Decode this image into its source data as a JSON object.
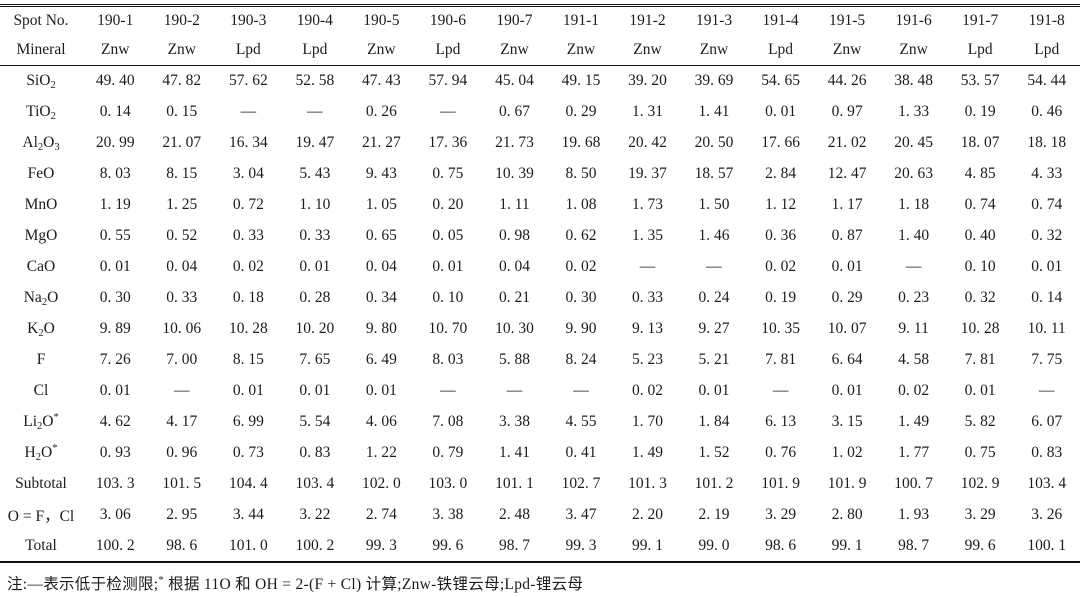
{
  "table": {
    "header": {
      "spot_label": "Spot No.",
      "mineral_label": "Mineral",
      "spots": [
        "190-1",
        "190-2",
        "190-3",
        "190-4",
        "190-5",
        "190-6",
        "190-7",
        "191-1",
        "191-2",
        "191-3",
        "191-4",
        "191-5",
        "191-6",
        "191-7",
        "191-8"
      ],
      "minerals": [
        "Znw",
        "Znw",
        "Lpd",
        "Lpd",
        "Znw",
        "Lpd",
        "Znw",
        "Znw",
        "Znw",
        "Znw",
        "Lpd",
        "Znw",
        "Znw",
        "Lpd",
        "Lpd"
      ]
    },
    "rows": [
      {
        "label": "SiO_2",
        "values": [
          "49. 40",
          "47. 82",
          "57. 62",
          "52. 58",
          "47. 43",
          "57. 94",
          "45. 04",
          "49. 15",
          "39. 20",
          "39. 69",
          "54. 65",
          "44. 26",
          "38. 48",
          "53. 57",
          "54. 44"
        ]
      },
      {
        "label": "TiO_2",
        "values": [
          "0. 14",
          "0. 15",
          "—",
          "—",
          "0. 26",
          "—",
          "0. 67",
          "0. 29",
          "1. 31",
          "1. 41",
          "0. 01",
          "0. 97",
          "1. 33",
          "0. 19",
          "0. 46"
        ]
      },
      {
        "label": "Al_2O_3",
        "values": [
          "20. 99",
          "21. 07",
          "16. 34",
          "19. 47",
          "21. 27",
          "17. 36",
          "21. 73",
          "19. 68",
          "20. 42",
          "20. 50",
          "17. 66",
          "21. 02",
          "20. 45",
          "18. 07",
          "18. 18"
        ]
      },
      {
        "label": "FeO",
        "values": [
          "8. 03",
          "8. 15",
          "3. 04",
          "5. 43",
          "9. 43",
          "0. 75",
          "10. 39",
          "8. 50",
          "19. 37",
          "18. 57",
          "2. 84",
          "12. 47",
          "20. 63",
          "4. 85",
          "4. 33"
        ]
      },
      {
        "label": "MnO",
        "values": [
          "1. 19",
          "1. 25",
          "0. 72",
          "1. 10",
          "1. 05",
          "0. 20",
          "1. 11",
          "1. 08",
          "1. 73",
          "1. 50",
          "1. 12",
          "1. 17",
          "1. 18",
          "0. 74",
          "0. 74"
        ]
      },
      {
        "label": "MgO",
        "values": [
          "0. 55",
          "0. 52",
          "0. 33",
          "0. 33",
          "0. 65",
          "0. 05",
          "0. 98",
          "0. 62",
          "1. 35",
          "1. 46",
          "0. 36",
          "0. 87",
          "1. 40",
          "0. 40",
          "0. 32"
        ]
      },
      {
        "label": "CaO",
        "values": [
          "0. 01",
          "0. 04",
          "0. 02",
          "0. 01",
          "0. 04",
          "0. 01",
          "0. 04",
          "0. 02",
          "—",
          "—",
          "0. 02",
          "0. 01",
          "—",
          "0. 10",
          "0. 01"
        ]
      },
      {
        "label": "Na_2O",
        "values": [
          "0. 30",
          "0. 33",
          "0. 18",
          "0. 28",
          "0. 34",
          "0. 10",
          "0. 21",
          "0. 30",
          "0. 33",
          "0. 24",
          "0. 19",
          "0. 29",
          "0. 23",
          "0. 32",
          "0. 14"
        ]
      },
      {
        "label": "K_2O",
        "values": [
          "9. 89",
          "10. 06",
          "10. 28",
          "10. 20",
          "9. 80",
          "10. 70",
          "10. 30",
          "9. 90",
          "9. 13",
          "9. 27",
          "10. 35",
          "10. 07",
          "9. 11",
          "10. 28",
          "10. 11"
        ]
      },
      {
        "label": "F",
        "values": [
          "7. 26",
          "7. 00",
          "8. 15",
          "7. 65",
          "6. 49",
          "8. 03",
          "5. 88",
          "8. 24",
          "5. 23",
          "5. 21",
          "7. 81",
          "6. 64",
          "4. 58",
          "7. 81",
          "7. 75"
        ]
      },
      {
        "label": "Cl",
        "values": [
          "0. 01",
          "—",
          "0. 01",
          "0. 01",
          "0. 01",
          "—",
          "—",
          "—",
          "0. 02",
          "0. 01",
          "—",
          "0. 01",
          "0. 02",
          "0. 01",
          "—"
        ]
      },
      {
        "label": "Li_2O^*",
        "values": [
          "4. 62",
          "4. 17",
          "6. 99",
          "5. 54",
          "4. 06",
          "7. 08",
          "3. 38",
          "4. 55",
          "1. 70",
          "1. 84",
          "6. 13",
          "3. 15",
          "1. 49",
          "5. 82",
          "6. 07"
        ]
      },
      {
        "label": "H_2O^*",
        "values": [
          "0. 93",
          "0. 96",
          "0. 73",
          "0. 83",
          "1. 22",
          "0. 79",
          "1. 41",
          "0. 41",
          "1. 49",
          "1. 52",
          "0. 76",
          "1. 02",
          "1. 77",
          "0. 75",
          "0. 83"
        ]
      },
      {
        "label": "Subtotal",
        "values": [
          "103. 3",
          "101. 5",
          "104. 4",
          "103. 4",
          "102. 0",
          "103. 0",
          "101. 1",
          "102. 7",
          "101. 3",
          "101. 2",
          "101. 9",
          "101. 9",
          "100. 7",
          "102. 9",
          "103. 4"
        ]
      },
      {
        "label": "O = F，Cl",
        "values": [
          "3. 06",
          "2. 95",
          "3. 44",
          "3. 22",
          "2. 74",
          "3. 38",
          "2. 48",
          "3. 47",
          "2. 20",
          "2. 19",
          "3. 29",
          "2. 80",
          "1. 93",
          "3. 29",
          "3. 26"
        ]
      },
      {
        "label": "Total",
        "values": [
          "100. 2",
          "98. 6",
          "101. 0",
          "100. 2",
          "99. 3",
          "99. 6",
          "98. 7",
          "99. 3",
          "99. 1",
          "99. 0",
          "98. 6",
          "99. 1",
          "98. 7",
          "99. 6",
          "100. 1"
        ]
      }
    ]
  },
  "footnote": "注:—表示低于检测限;^* 根据 11O 和 OH = 2-(F + Cl) 计算;Znw-铁锂云母;Lpd-锂云母",
  "colors": {
    "text": "#1c1c1c",
    "rule": "#111111",
    "background": "#ffffff"
  }
}
